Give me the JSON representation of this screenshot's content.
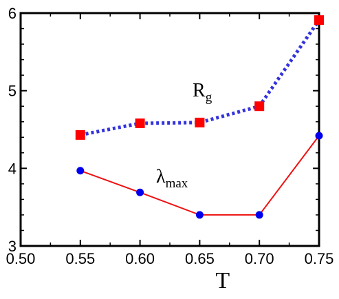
{
  "chart_data": {
    "type": "line",
    "xlabel": "T",
    "ylabel": "",
    "xlim": [
      0.5,
      0.75
    ],
    "ylim": [
      3,
      6
    ],
    "xticks": [
      0.5,
      0.55,
      0.6,
      0.65,
      0.7,
      0.75
    ],
    "yticks": [
      3,
      4,
      5,
      6
    ],
    "xtick_labels": [
      "0.50",
      "0.55",
      "0.60",
      "0.65",
      "0.70",
      "0.75"
    ],
    "ytick_labels": [
      "3",
      "4",
      "5",
      "6"
    ],
    "grid": false,
    "x": [
      0.55,
      0.6,
      0.65,
      0.7,
      0.75
    ],
    "series": [
      {
        "label_main": "R",
        "label_sub": "g",
        "values": [
          4.43,
          4.58,
          4.59,
          4.8,
          5.91
        ],
        "line_color": "#3333dd",
        "marker_color": "#ff0000",
        "marker": "square",
        "line_style": "dotted"
      },
      {
        "label_main": "λ",
        "label_sub": "max",
        "values": [
          3.97,
          3.69,
          3.4,
          3.4,
          4.42
        ],
        "line_color": "#ee1111",
        "marker_color": "#0000ee",
        "marker": "circle",
        "line_style": "solid"
      }
    ]
  }
}
